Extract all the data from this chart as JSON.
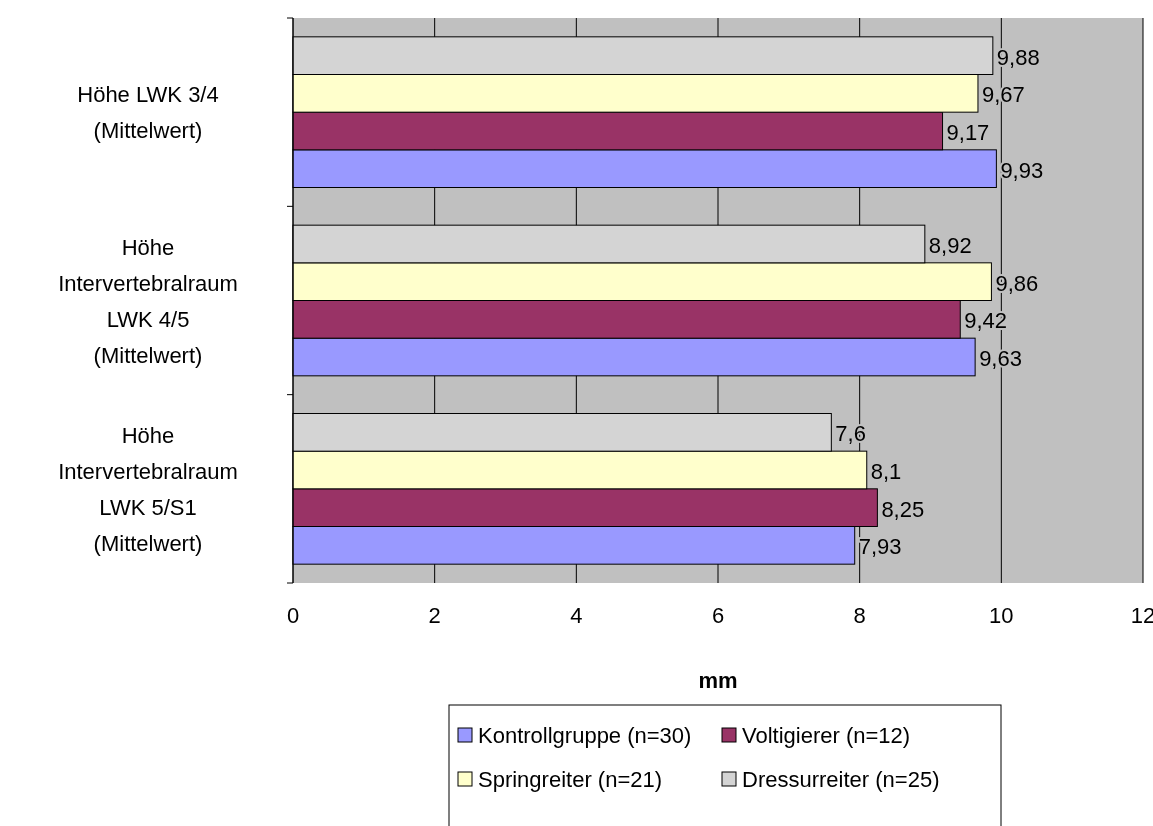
{
  "chart_data": {
    "type": "bar",
    "orientation": "horizontal",
    "xlabel": "mm",
    "categories": [
      "Höhe LWK 3/4 (Mittelwert)",
      "Höhe Intervertebralraum LWK 4/5 (Mittelwert)",
      "Höhe Intervertebralraum LWK 5/S1 (Mittelwert)"
    ],
    "series": [
      {
        "name": "Kontrollgruppe (n=30)",
        "color": "#9999ff",
        "values": [
          9.93,
          9.63,
          7.93
        ],
        "value_labels": [
          "9,93",
          "9,63",
          "7,93"
        ]
      },
      {
        "name": "Voltigierer (n=12)",
        "color": "#993366",
        "values": [
          9.17,
          9.42,
          8.25
        ],
        "value_labels": [
          "9,17",
          "9,42",
          "8,25"
        ]
      },
      {
        "name": "Springreiter (n=21)",
        "color": "#ffffcc",
        "values": [
          9.67,
          9.86,
          8.1
        ],
        "value_labels": [
          "9,67",
          "9,86",
          "8,1"
        ]
      },
      {
        "name": "Dressurreiter (n=25)",
        "color": "#d4d4d4",
        "values": [
          9.88,
          8.92,
          7.6
        ],
        "value_labels": [
          "9,88",
          "8,92",
          "7,6"
        ]
      }
    ],
    "xlim": [
      0,
      12
    ],
    "xticks": [
      0,
      2,
      4,
      6,
      8,
      10,
      12
    ],
    "grid": "x",
    "legend": "bottom"
  }
}
